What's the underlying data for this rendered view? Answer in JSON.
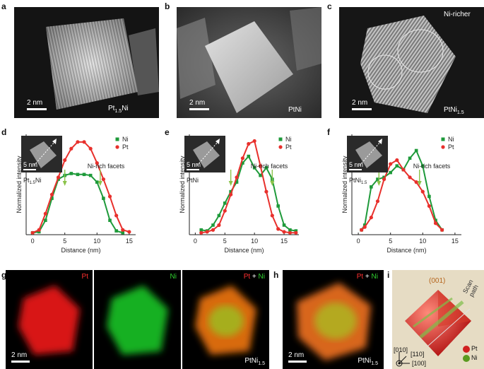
{
  "top_row": [
    {
      "letter": "a",
      "material": "Pt",
      "sub": "1.5",
      "tail": "Ni",
      "scale": "2 nm"
    },
    {
      "letter": "b",
      "material": "PtNi",
      "sub": "",
      "tail": "",
      "scale": "2 nm"
    },
    {
      "letter": "c",
      "material": "PtNi",
      "sub": "1.5",
      "tail": "",
      "scale": "2 nm",
      "annotation": "Ni-richer"
    }
  ],
  "profiles": [
    {
      "letter": "d",
      "inset_scale": "5 nm",
      "material": "Pt",
      "sub": "1.5",
      "tail": "Ni",
      "facet_label": "Ni-rich facets",
      "legend": [
        "Ni",
        "Pt"
      ],
      "xlabel": "Distance (nm)",
      "ylabel": "Normalized intensity",
      "xticks": [
        "0",
        "5",
        "10",
        "15"
      ]
    },
    {
      "letter": "e",
      "inset_scale": "5 nm",
      "material": "PtNi",
      "sub": "",
      "tail": "",
      "facet_label": "Ni-rich facets",
      "legend": [
        "Ni",
        "Pt"
      ],
      "xlabel": "Distance (nm)",
      "ylabel": "Normalized intensity",
      "xticks": [
        "0",
        "5",
        "10",
        "15"
      ]
    },
    {
      "letter": "f",
      "inset_scale": "5 nm",
      "material": "PtNi",
      "sub": "1.5",
      "tail": "",
      "facet_label": "Ni-rich facets",
      "legend": [
        "Ni",
        "Pt"
      ],
      "xlabel": "Distance (nm)",
      "ylabel": "Normalized intensity",
      "xticks": [
        "0",
        "5",
        "10",
        "15"
      ]
    }
  ],
  "bottom_row": {
    "g": {
      "letter": "g",
      "maps": [
        "Pt",
        "Ni",
        "Pt + Ni"
      ],
      "scale": "2 nm",
      "material": "PtNi",
      "sub": "1.5"
    },
    "h": {
      "letter": "h",
      "map": "Pt + Ni",
      "scale": "2 nm",
      "material": "PtNi",
      "sub": "1.5"
    },
    "i": {
      "letter": "i",
      "facet": "(001)",
      "scan": "Scan path",
      "axes": [
        "[010]",
        "[110]",
        "[100]"
      ],
      "legend": [
        "Pt",
        "Ni"
      ]
    }
  },
  "colors": {
    "pt": "#e8302c",
    "ni": "#1e9a3a",
    "map_pt": "#e01010",
    "map_ni": "#18c020",
    "arrow": "#8bc34a",
    "facet_text": "#b5651d"
  },
  "chart_data": [
    {
      "type": "scatter",
      "xlim": [
        -1,
        16
      ],
      "ylim": [
        0,
        1.05
      ],
      "series": [
        {
          "name": "Ni",
          "x": [
            0,
            1,
            2,
            3,
            4,
            5,
            6,
            7,
            8,
            9,
            10,
            11,
            12,
            13,
            14
          ],
          "values": [
            0.02,
            0.03,
            0.15,
            0.38,
            0.58,
            0.62,
            0.64,
            0.63,
            0.63,
            0.62,
            0.55,
            0.38,
            0.15,
            0.04,
            0.02
          ]
        },
        {
          "name": "Pt",
          "x": [
            0,
            1,
            2,
            3,
            4,
            5,
            6,
            7,
            8,
            9,
            10,
            11,
            12,
            13,
            14,
            15
          ],
          "values": [
            0.02,
            0.05,
            0.22,
            0.42,
            0.6,
            0.78,
            0.9,
            0.97,
            0.97,
            0.9,
            0.75,
            0.58,
            0.4,
            0.2,
            0.05,
            0.03
          ]
        }
      ]
    },
    {
      "type": "scatter",
      "xlim": [
        -1,
        17.5
      ],
      "ylim": [
        0,
        1.05
      ],
      "series": [
        {
          "name": "Ni",
          "x": [
            1,
            2,
            3,
            4,
            5,
            6,
            7,
            8,
            9,
            10,
            11,
            12,
            13,
            14,
            15,
            16,
            17
          ],
          "values": [
            0.05,
            0.04,
            0.1,
            0.2,
            0.33,
            0.45,
            0.55,
            0.75,
            0.82,
            0.7,
            0.62,
            0.7,
            0.58,
            0.3,
            0.1,
            0.05,
            0.04
          ]
        },
        {
          "name": "Pt",
          "x": [
            1,
            2,
            3,
            4,
            5,
            6,
            7,
            8,
            9,
            10,
            11,
            12,
            13,
            14,
            15,
            16,
            17
          ],
          "values": [
            0.02,
            0.03,
            0.05,
            0.1,
            0.25,
            0.42,
            0.6,
            0.8,
            0.95,
            0.98,
            0.72,
            0.45,
            0.2,
            0.06,
            0.03,
            0.02,
            0.02
          ]
        }
      ]
    },
    {
      "type": "scatter",
      "xlim": [
        -1,
        16
      ],
      "ylim": [
        0,
        1.05
      ],
      "series": [
        {
          "name": "Ni",
          "x": [
            0.5,
            1,
            2,
            3,
            4,
            5,
            6,
            7,
            8,
            9,
            10,
            11,
            12,
            13
          ],
          "values": [
            0.05,
            0.1,
            0.5,
            0.58,
            0.6,
            0.65,
            0.72,
            0.68,
            0.8,
            0.88,
            0.72,
            0.4,
            0.15,
            0.05
          ]
        },
        {
          "name": "Pt",
          "x": [
            0.5,
            1,
            2,
            3,
            4,
            5,
            6,
            7,
            8,
            9,
            10,
            11,
            12,
            13
          ],
          "values": [
            0.05,
            0.08,
            0.18,
            0.35,
            0.58,
            0.74,
            0.78,
            0.68,
            0.6,
            0.55,
            0.45,
            0.3,
            0.12,
            0.05
          ]
        }
      ]
    }
  ]
}
